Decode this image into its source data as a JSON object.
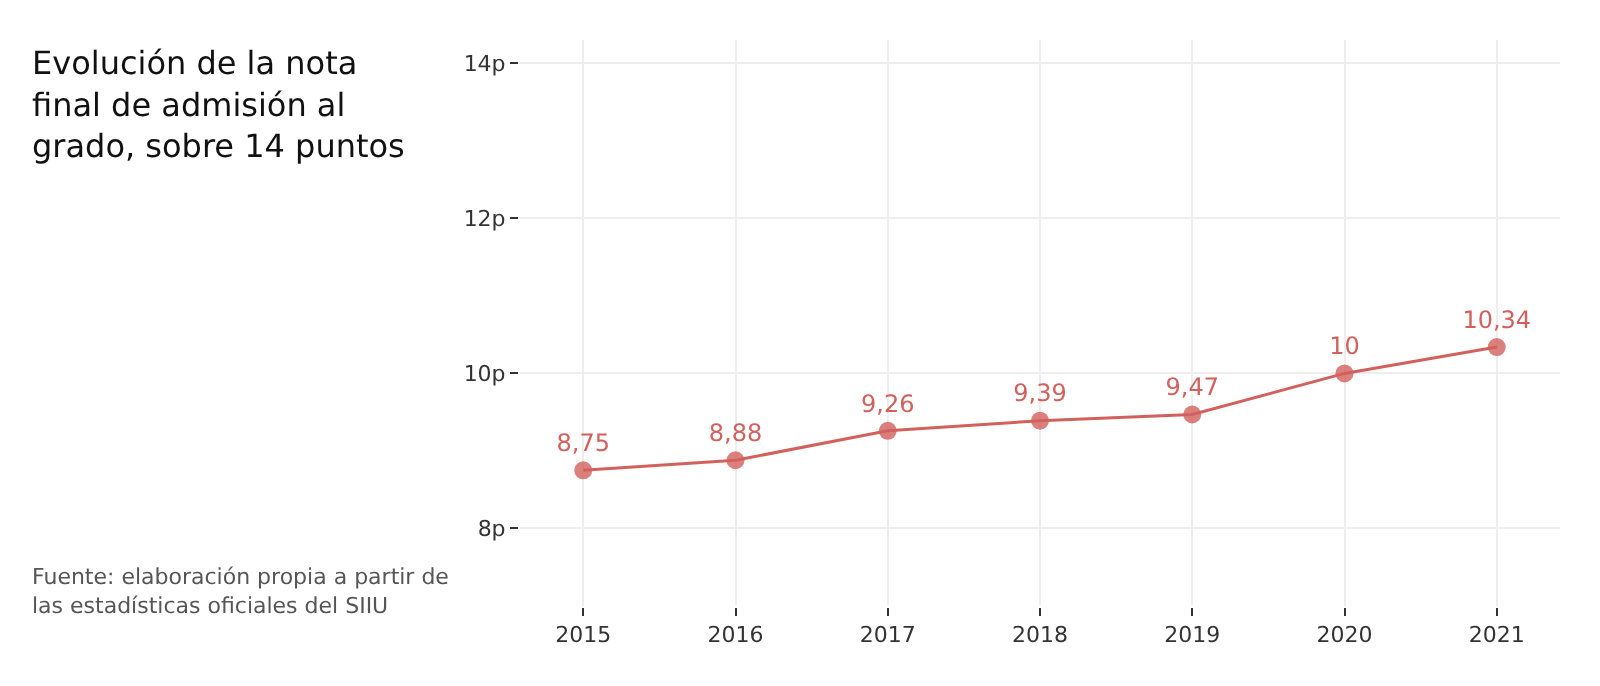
{
  "chart_data": {
    "type": "line",
    "title": "Evolución de la nota final de admisión al grado, sobre 14 puntos",
    "annotations": [
      "Fuente: elaboración propia a partir de las estadísticas oficiales del SIIU"
    ],
    "categories": [
      "2015",
      "2016",
      "2017",
      "2018",
      "2019",
      "2020",
      "2021"
    ],
    "series": [
      {
        "color": "#d2605c",
        "values": [
          8.75,
          8.88,
          9.26,
          9.39,
          9.47,
          10,
          10.34
        ],
        "value_labels": [
          "8,75",
          "8,88",
          "9,26",
          "9,39",
          "9,47",
          "10",
          "10,34"
        ]
      }
    ],
    "ylim": [
      7,
      14.3
    ],
    "yticks": [
      {
        "value": 8,
        "label": "8p"
      },
      {
        "value": 10,
        "label": "10p"
      },
      {
        "value": 12,
        "label": "12p"
      },
      {
        "value": 14,
        "label": "14p"
      }
    ],
    "grid": true,
    "marker": "circle",
    "line_style": "solid",
    "legend": false
  }
}
